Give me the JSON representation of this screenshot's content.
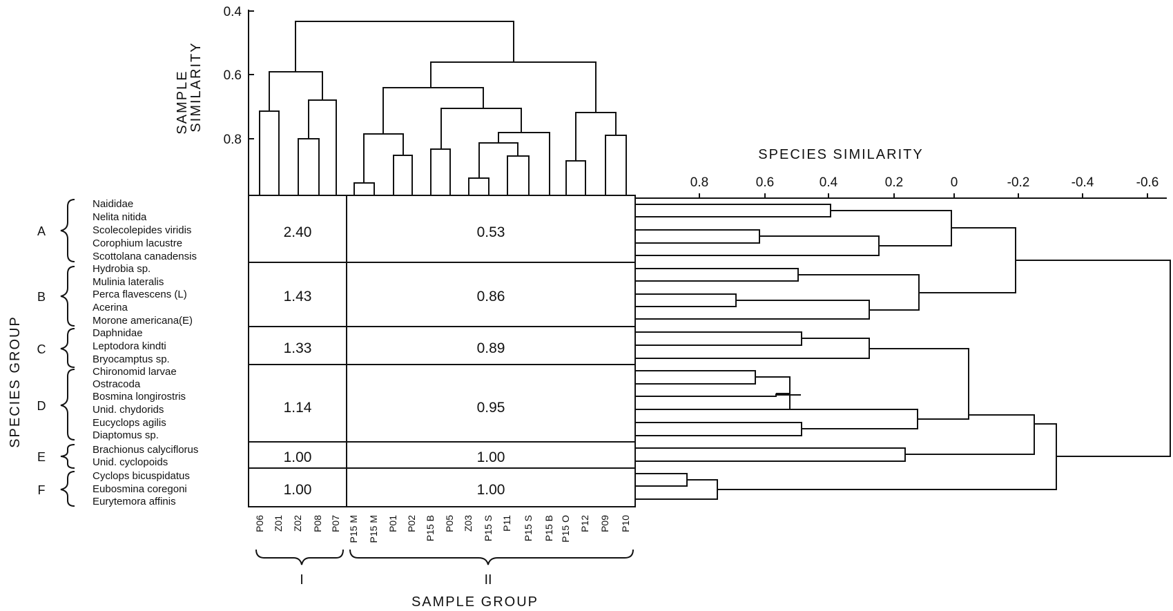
{
  "titles": {
    "sample_axis_line1": "SAMPLE",
    "sample_axis_line2": "SIMILARITY",
    "species_axis": "SPECIES SIMILARITY",
    "species_group": "SPECIES GROUP",
    "sample_group": "SAMPLE GROUP"
  },
  "sample_axis_ticks": [
    "0.4",
    "0.6",
    "0.8"
  ],
  "species_axis_ticks": [
    "0.8",
    "0.6",
    "0.4",
    "0.2",
    "0",
    "-0.2",
    "-0.4",
    "-0.6"
  ],
  "species_groups": [
    {
      "label": "A",
      "species": [
        "Naididae",
        "Nelita nitida",
        "Scolecolepides viridis",
        "Corophium lacustre",
        "Scottolana canadensis"
      ],
      "value_I": "2.40",
      "value_II": "0.53"
    },
    {
      "label": "B",
      "species": [
        "Hydrobia sp.",
        "Mulinia lateralis",
        "Perca flavescens (L)",
        "Acerina",
        "Morone americana(E)"
      ],
      "value_I": "1.43",
      "value_II": "0.86"
    },
    {
      "label": "C",
      "species": [
        "Daphnidae",
        "Leptodora kindti",
        "Bryocamptus sp."
      ],
      "value_I": "1.33",
      "value_II": "0.89"
    },
    {
      "label": "D",
      "species": [
        "Chironomid larvae",
        "Ostracoda",
        "Bosmina longirostris",
        "Unid. chydorids",
        "Eucyclops agilis",
        "Diaptomus sp."
      ],
      "value_I": "1.14",
      "value_II": "0.95"
    },
    {
      "label": "E",
      "species": [
        "Brachionus calyciflorus",
        "Unid. cyclopoids"
      ],
      "value_I": "1.00",
      "value_II": "1.00"
    },
    {
      "label": "F",
      "species": [
        "Cyclops bicuspidatus",
        "Eubosmina coregoni",
        "Eurytemora affinis"
      ],
      "value_I": "1.00",
      "value_II": "1.00"
    }
  ],
  "sample_groups": [
    {
      "label": "I",
      "samples": [
        "P06",
        "Z01",
        "Z02",
        "P08",
        "P07"
      ]
    },
    {
      "label": "II",
      "samples": [
        "P15 M",
        "P15 M",
        "P01",
        "P02",
        "P15 B",
        "P05",
        "Z03",
        "P15 S",
        "P11",
        "P15 S",
        "P15 B",
        "P15 O",
        "P12",
        "P09",
        "P10"
      ]
    }
  ]
}
